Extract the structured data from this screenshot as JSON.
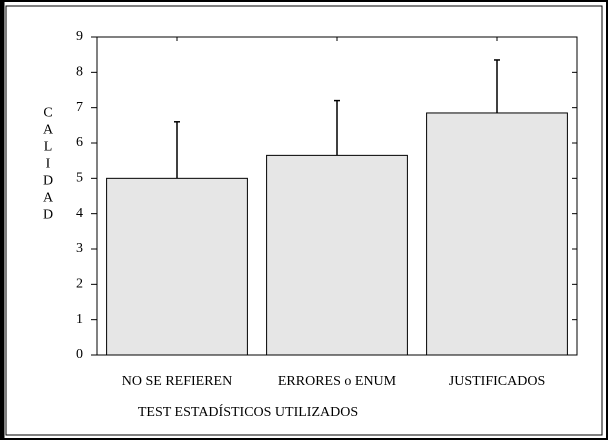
{
  "chart_data": {
    "type": "bar",
    "categories": [
      "NO SE REFIEREN",
      "ERRORES o ENUM",
      "JUSTIFICADOS"
    ],
    "values": [
      5.0,
      5.65,
      6.85
    ],
    "errors": [
      1.6,
      1.55,
      1.5
    ],
    "color": "#e6e6e6",
    "y_label": "CALIDAD",
    "x_label": "TEST ESTADÍSTICOS UTILIZADOS",
    "ylim": [
      0,
      9
    ],
    "yticks": [
      0,
      1,
      2,
      3,
      4,
      5,
      6,
      7,
      8,
      9
    ],
    "grid": false
  }
}
